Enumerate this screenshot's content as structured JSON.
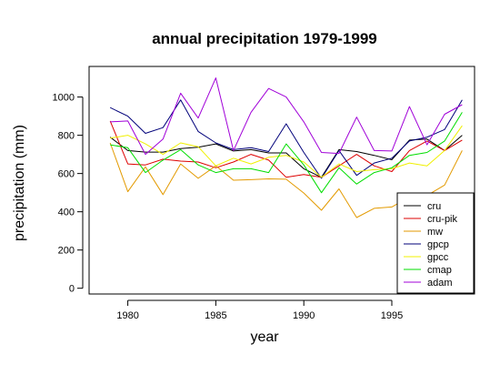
{
  "chart_data": {
    "type": "line",
    "title": "annual precipitation 1979-1999",
    "xlabel": "year",
    "ylabel": "precipitation (mm)",
    "xlim": [
      1977.8,
      1999.7
    ],
    "ylim": [
      -30,
      1160
    ],
    "x_ticks": [
      1980,
      1985,
      1990,
      1995
    ],
    "y_ticks": [
      0,
      200,
      400,
      600,
      800,
      1000
    ],
    "legend_position": "bottom-right",
    "grid": false,
    "x": [
      1979,
      1980,
      1981,
      1982,
      1983,
      1984,
      1985,
      1986,
      1987,
      1988,
      1989,
      1990,
      1991,
      1992,
      1993,
      1994,
      1995,
      1996,
      1997,
      1998,
      1999
    ],
    "series": [
      {
        "name": "cru",
        "color": "#000000",
        "values": [
          790,
          720,
          712,
          712,
          730,
          738,
          755,
          718,
          725,
          708,
          708,
          625,
          580,
          725,
          715,
          695,
          672,
          775,
          780,
          720,
          800
        ]
      },
      {
        "name": "cru-pik",
        "color": "#dd0000",
        "values": [
          875,
          650,
          645,
          675,
          665,
          660,
          630,
          660,
          700,
          670,
          580,
          595,
          580,
          640,
          700,
          640,
          610,
          720,
          770,
          720,
          775
        ]
      },
      {
        "name": "mw",
        "color": "#e39a00",
        "values": [
          760,
          505,
          635,
          490,
          650,
          575,
          640,
          565,
          568,
          572,
          570,
          498,
          408,
          520,
          370,
          418,
          425,
          478,
          485,
          540,
          720
        ]
      },
      {
        "name": "gpcp",
        "color": "#00007a",
        "values": [
          945,
          900,
          810,
          840,
          985,
          820,
          760,
          725,
          735,
          715,
          860,
          710,
          575,
          720,
          590,
          655,
          680,
          770,
          790,
          830,
          985
        ]
      },
      {
        "name": "gpcc",
        "color": "#f0f000",
        "values": [
          785,
          800,
          755,
          700,
          760,
          740,
          640,
          680,
          650,
          685,
          695,
          660,
          580,
          650,
          610,
          620,
          625,
          655,
          640,
          720,
          850
        ]
      },
      {
        "name": "cmap",
        "color": "#00dd00",
        "values": [
          750,
          735,
          605,
          670,
          725,
          645,
          605,
          625,
          625,
          605,
          755,
          645,
          500,
          630,
          545,
          605,
          630,
          695,
          710,
          770,
          920
        ]
      },
      {
        "name": "adam",
        "color": "#a000d8",
        "values": [
          870,
          875,
          700,
          780,
          1020,
          890,
          1100,
          720,
          920,
          1045,
          1000,
          870,
          710,
          705,
          895,
          720,
          718,
          950,
          750,
          910,
          960
        ]
      }
    ]
  }
}
